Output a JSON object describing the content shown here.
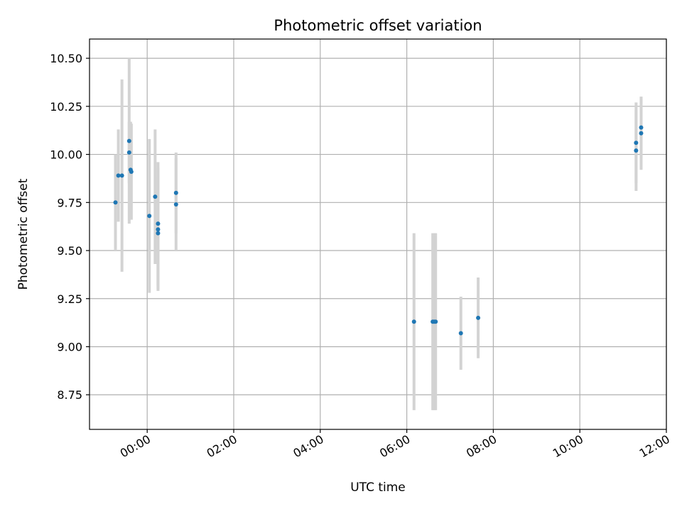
{
  "chart_data": {
    "type": "scatter",
    "title": "Photometric offset variation",
    "xlabel": "UTC time",
    "ylabel": "Photometric offset",
    "x_unit": "hours (UTC)",
    "xlim": [
      "-01:20",
      "12:00"
    ],
    "ylim": [
      8.57,
      10.6
    ],
    "xticks": [
      {
        "value": "00:00",
        "label": "00:00"
      },
      {
        "value": "02:00",
        "label": "02:00"
      },
      {
        "value": "04:00",
        "label": "04:00"
      },
      {
        "value": "06:00",
        "label": "06:00"
      },
      {
        "value": "08:00",
        "label": "08:00"
      },
      {
        "value": "10:00",
        "label": "10:00"
      },
      {
        "value": "12:00",
        "label": "12:00"
      }
    ],
    "yticks": [
      {
        "value": 8.75,
        "label": "8.75"
      },
      {
        "value": 9.0,
        "label": "9.00"
      },
      {
        "value": 9.25,
        "label": "9.25"
      },
      {
        "value": 9.5,
        "label": "9.50"
      },
      {
        "value": 9.75,
        "label": "9.75"
      },
      {
        "value": 10.0,
        "label": "10.00"
      },
      {
        "value": 10.25,
        "label": "10.25"
      },
      {
        "value": 10.5,
        "label": "10.50"
      }
    ],
    "grid": true,
    "colors": {
      "marker": "#1f77b4",
      "errorbar": "#d3d3d3",
      "grid": "#b0b0b0",
      "axes": "#000000"
    },
    "points": [
      {
        "x": "-00:44",
        "y": 9.75,
        "yerr": 0.25
      },
      {
        "x": "-00:40",
        "y": 9.89,
        "yerr": 0.24
      },
      {
        "x": "-00:35",
        "y": 9.89,
        "yerr": 0.5
      },
      {
        "x": "-00:25",
        "y": 10.07,
        "yerr": 0.43
      },
      {
        "x": "-00:25",
        "y": 10.01,
        "yerr": 0.16
      },
      {
        "x": "-00:23",
        "y": 9.92,
        "yerr": 0.25
      },
      {
        "x": "-00:22",
        "y": 9.91,
        "yerr": 0.25
      },
      {
        "x": "00:03",
        "y": 9.68,
        "yerr": 0.4
      },
      {
        "x": "00:11",
        "y": 9.78,
        "yerr": 0.35
      },
      {
        "x": "00:15",
        "y": 9.64,
        "yerr": 0.32
      },
      {
        "x": "00:15",
        "y": 9.61,
        "yerr": 0.32
      },
      {
        "x": "00:15",
        "y": 9.59,
        "yerr": 0.29
      },
      {
        "x": "00:40",
        "y": 9.8,
        "yerr": 0.21
      },
      {
        "x": "00:40",
        "y": 9.74,
        "yerr": 0.24
      },
      {
        "x": "06:10",
        "y": 9.13,
        "yerr": 0.46
      },
      {
        "x": "06:36",
        "y": 9.13,
        "yerr": 0.46
      },
      {
        "x": "06:38",
        "y": 9.13,
        "yerr": 0.46
      },
      {
        "x": "06:40",
        "y": 9.13,
        "yerr": 0.46
      },
      {
        "x": "07:15",
        "y": 9.07,
        "yerr": 0.19
      },
      {
        "x": "07:39",
        "y": 9.15,
        "yerr": 0.21
      },
      {
        "x": "11:18",
        "y": 10.06,
        "yerr": 0.21
      },
      {
        "x": "11:18",
        "y": 10.02,
        "yerr": 0.21
      },
      {
        "x": "11:25",
        "y": 10.14,
        "yerr": 0.16
      },
      {
        "x": "11:25",
        "y": 10.11,
        "yerr": 0.19
      }
    ]
  }
}
